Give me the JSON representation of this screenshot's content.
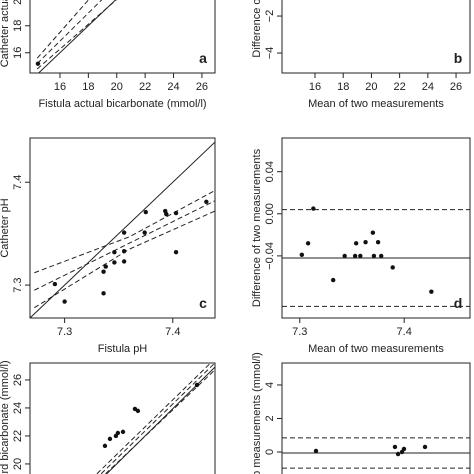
{
  "chart_data": [
    {
      "type": "scatter",
      "panel_label": "a",
      "xlabel": "Fistula actual bicarbonate (mmol/l)",
      "ylabel": "Catheter actual",
      "xlim": [
        13.89,
        26.92
      ],
      "ylim": [
        14.5,
        20.5
      ],
      "xticks": [
        16,
        18,
        20,
        22,
        24,
        26
      ],
      "yticks": [
        16,
        18,
        20
      ],
      "x": [
        14.45
      ],
      "y": [
        15.19
      ],
      "lines": [
        {
          "style": "solid",
          "x": [
            14.5,
            20.5
          ],
          "y": [
            14.5,
            20.5
          ]
        },
        {
          "style": "dashed",
          "x": [
            14.4,
            19.5
          ],
          "y": [
            15.2,
            20.5
          ]
        },
        {
          "style": "dashed",
          "x": [
            14.4,
            18.5
          ],
          "y": [
            15.6,
            20.5
          ]
        },
        {
          "style": "dashed",
          "x": [
            14.4,
            20.6
          ],
          "y": [
            14.8,
            20.5
          ]
        }
      ]
    },
    {
      "type": "bland-altman",
      "panel_label": "b",
      "xlabel": "Mean of two measurements",
      "ylabel": "Difference o",
      "xlim": [
        13.66,
        26.99
      ],
      "ylim": [
        -5.08,
        -0.7
      ],
      "xticks": [
        16,
        18,
        20,
        22,
        24,
        26
      ],
      "yticks": [
        {
          "value": -2,
          "label": "−2"
        },
        {
          "value": -4,
          "label": "−4"
        }
      ],
      "x": [],
      "y": []
    },
    {
      "type": "scatter",
      "panel_label": "c",
      "xlabel": "Fistula pH",
      "ylabel": "Catheter pH",
      "xlim": [
        7.268,
        7.439
      ],
      "ylim": [
        7.268,
        7.443
      ],
      "xticks": [
        7.3,
        7.4
      ],
      "yticks": [
        7.3,
        7.4
      ],
      "x": [
        7.291,
        7.3,
        7.336,
        7.336,
        7.338,
        7.346,
        7.346,
        7.355,
        7.355,
        7.355,
        7.374,
        7.375,
        7.393,
        7.394,
        7.403,
        7.403,
        7.431
      ],
      "y": [
        7.301,
        7.284,
        7.292,
        7.313,
        7.318,
        7.322,
        7.332,
        7.323,
        7.333,
        7.351,
        7.351,
        7.371,
        7.372,
        7.369,
        7.37,
        7.332,
        7.381
      ],
      "lines": [
        {
          "style": "solid",
          "x": [
            7.268,
            7.439
          ],
          "y": [
            7.268,
            7.439
          ]
        },
        {
          "style": "dashed",
          "x": [
            7.272,
            7.439
          ],
          "y": [
            7.295,
            7.382
          ]
        },
        {
          "style": "dashed",
          "x": [
            7.272,
            7.36,
            7.439
          ],
          "y": [
            7.312,
            7.347,
            7.392
          ]
        },
        {
          "style": "dashed",
          "x": [
            7.272,
            7.36,
            7.439
          ],
          "y": [
            7.278,
            7.335,
            7.372
          ]
        }
      ]
    },
    {
      "type": "bland-altman",
      "panel_label": "d",
      "xlabel": "Mean of two measurements",
      "ylabel": "Difference of two measurements",
      "xlim": [
        7.283,
        7.463
      ],
      "ylim": [
        -0.099,
        0.072
      ],
      "xticks": [
        7.3,
        7.4
      ],
      "yticks": [
        0.04,
        {
          "value": 0,
          "label": "0.00"
        },
        {
          "value": -0.04,
          "label": "−0.04"
        }
      ],
      "x": [
        7.302,
        7.308,
        7.313,
        7.332,
        7.343,
        7.353,
        7.354,
        7.358,
        7.363,
        7.37,
        7.375,
        7.371,
        7.378,
        7.389,
        7.426
      ],
      "y": [
        -0.039,
        -0.028,
        0.005,
        -0.063,
        -0.04,
        -0.04,
        -0.028,
        -0.04,
        -0.027,
        -0.018,
        -0.027,
        -0.04,
        -0.04,
        -0.051,
        -0.074
      ],
      "mean_difference": -0.042,
      "limits_of_agreement": [
        0.004,
        -0.088
      ]
    },
    {
      "type": "scatter",
      "ylabel": "ard bicarbonate (mmol/l)",
      "xlim": [
        13.89,
        26.92
      ],
      "ylim": [
        18.71,
        27.21
      ],
      "yticks": [
        20,
        22,
        24,
        26
      ],
      "x": [
        19.17,
        19.52,
        19.94,
        20.08,
        20.44,
        21.28,
        21.49,
        25.65
      ],
      "y": [
        21.29,
        21.79,
        22.0,
        22.21,
        22.29,
        23.93,
        23.79,
        25.64
      ],
      "lines": [
        {
          "style": "solid",
          "x": [
            18.7,
            27.2
          ],
          "y": [
            18.7,
            27.2
          ]
        },
        {
          "style": "dashed",
          "x": [
            18.5,
            26.9
          ],
          "y": [
            18.9,
            27.2
          ]
        },
        {
          "style": "dashed",
          "x": [
            18.2,
            26.6
          ],
          "y": [
            18.9,
            27.2
          ]
        },
        {
          "style": "dashed",
          "x": [
            18.8,
            27.2
          ],
          "y": [
            18.9,
            27.0
          ]
        }
      ]
    },
    {
      "type": "bland-altman",
      "ylabel": "two measurements (mmol/l)",
      "xlim": [
        13.66,
        26.99
      ],
      "ylim": [
        -1.79,
        5.31
      ],
      "yticks": [
        4,
        2,
        0
      ],
      "x": [
        16.07,
        21.67,
        21.89,
        22.17,
        22.31,
        23.8
      ],
      "y": [
        0.06,
        0.3,
        -0.12,
        0.0,
        0.18,
        0.3
      ],
      "mean_difference": -0.06,
      "limits_of_agreement": [
        0.84,
        -0.96
      ]
    }
  ]
}
